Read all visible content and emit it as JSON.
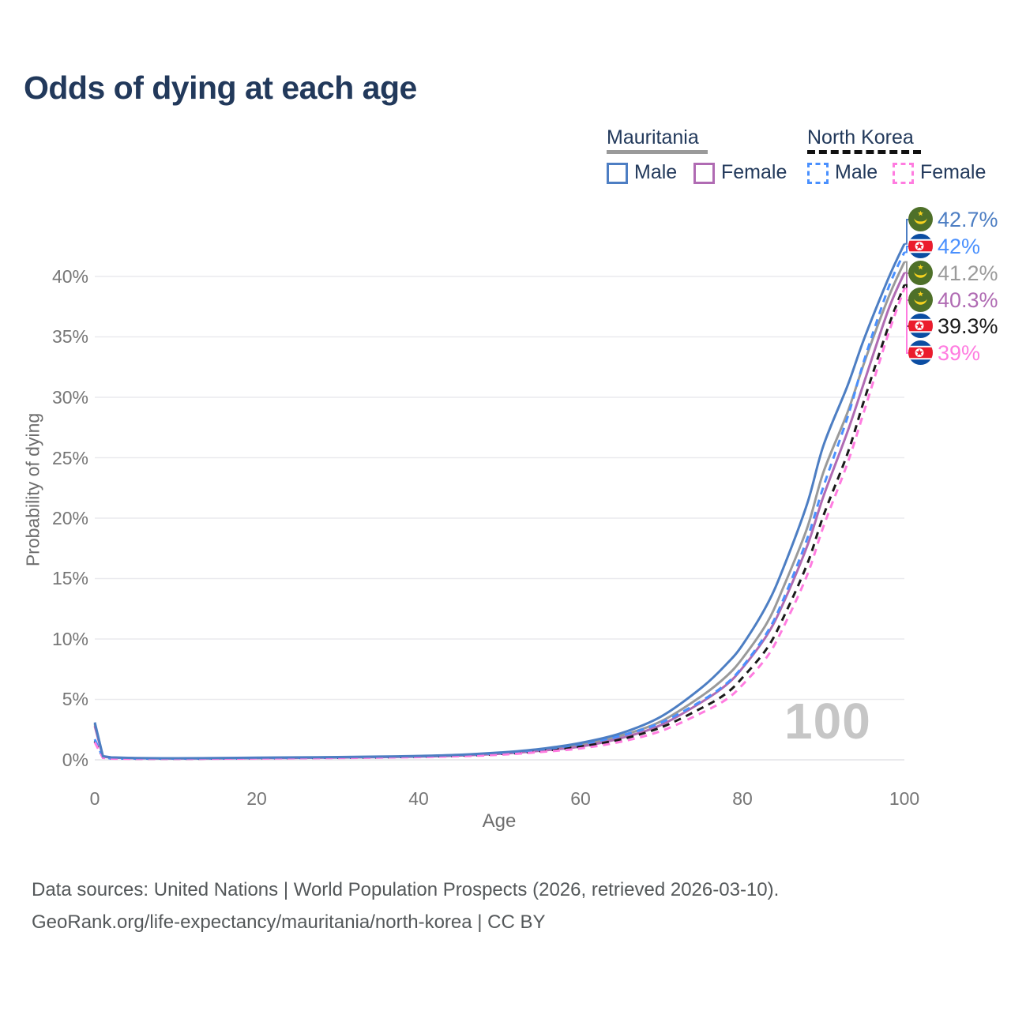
{
  "title": "Odds of dying at each age",
  "legend": {
    "groups": [
      {
        "label": "Mauritania",
        "underline_color": "#9a9a9a",
        "underline_style": "solid",
        "items": [
          {
            "label": "Male",
            "color": "#4d7ec3",
            "dash": "solid"
          },
          {
            "label": "Female",
            "color": "#b06bb3",
            "dash": "solid"
          }
        ]
      },
      {
        "label": "North Korea",
        "underline_color": "#111111",
        "underline_style": "dashed",
        "items": [
          {
            "label": "Male",
            "color": "#4a90fe",
            "dash": "dashed"
          },
          {
            "label": "Female",
            "color": "#ff7ce0",
            "dash": "dashed"
          }
        ]
      }
    ]
  },
  "axes": {
    "y_title": "Probability of dying",
    "x_title": "Age",
    "y_ticks": [
      "40%",
      "35%",
      "30%",
      "25%",
      "20%",
      "15%",
      "10%",
      "5%",
      "0%"
    ],
    "x_ticks": [
      "0",
      "20",
      "40",
      "60",
      "80",
      "100"
    ]
  },
  "watermark": "100",
  "end_labels": [
    {
      "text": "42.7%",
      "series": "mauritania-male",
      "flag": "mauritania"
    },
    {
      "text": "42%",
      "series": "north-korea-male",
      "flag": "north-korea"
    },
    {
      "text": "41.2%",
      "series": "mauritania-both",
      "flag": "mauritania"
    },
    {
      "text": "40.3%",
      "series": "mauritania-female",
      "flag": "mauritania"
    },
    {
      "text": "39.3%",
      "series": "north-korea-both",
      "flag": "north-korea"
    },
    {
      "text": "39%",
      "series": "north-korea-female",
      "flag": "north-korea"
    }
  ],
  "footer": {
    "line1": "Data sources: United Nations | World Population Prospects (2026, retrieved 2026-03-10).",
    "line2": "GeoRank.org/life-expectancy/mauritania/north-korea | CC BY"
  },
  "chart_data": {
    "type": "line",
    "title": "Odds of dying at each age",
    "xlabel": "Age",
    "ylabel": "Probability of dying",
    "xlim": [
      0,
      100
    ],
    "ylim_percent": [
      0,
      44
    ],
    "x_ticks": [
      0,
      20,
      40,
      60,
      80,
      100
    ],
    "y_ticks_percent": [
      0,
      5,
      10,
      15,
      20,
      25,
      30,
      35,
      40
    ],
    "grid": "horizontal",
    "legend_position": "top-right",
    "ages": [
      0,
      1,
      2,
      5,
      10,
      15,
      20,
      25,
      30,
      35,
      40,
      45,
      50,
      55,
      60,
      65,
      70,
      75,
      78,
      80,
      83,
      85,
      88,
      90,
      93,
      95,
      98,
      100
    ],
    "series": [
      {
        "name": "Mauritania Male",
        "id": "mauritania-male",
        "color": "#4d7ec3",
        "dash": "solid",
        "end_label": "42.7%",
        "values_percent": [
          3.1,
          0.3,
          0.2,
          0.15,
          0.13,
          0.15,
          0.18,
          0.2,
          0.23,
          0.27,
          0.32,
          0.42,
          0.6,
          0.9,
          1.4,
          2.2,
          3.6,
          6.0,
          7.9,
          9.5,
          12.8,
          15.8,
          21.2,
          26.0,
          31.0,
          34.8,
          39.8,
          42.7
        ]
      },
      {
        "name": "North Korea Male",
        "id": "north-korea-male",
        "color": "#4a90fe",
        "dash": "dashed",
        "end_label": "42%",
        "values_percent": [
          1.7,
          0.2,
          0.12,
          0.1,
          0.1,
          0.12,
          0.15,
          0.17,
          0.2,
          0.24,
          0.3,
          0.4,
          0.55,
          0.85,
          1.3,
          2.0,
          3.1,
          4.9,
          6.3,
          7.7,
          10.5,
          13.2,
          18.3,
          22.6,
          28.4,
          33.0,
          39.0,
          42.0
        ]
      },
      {
        "name": "Mauritania (both sexes)",
        "id": "mauritania-both",
        "color": "#9a9a9a",
        "dash": "solid",
        "end_label": "41.2%",
        "values_percent": [
          2.95,
          0.28,
          0.19,
          0.14,
          0.12,
          0.14,
          0.16,
          0.18,
          0.21,
          0.25,
          0.3,
          0.38,
          0.55,
          0.82,
          1.25,
          2.0,
          3.2,
          5.3,
          6.9,
          8.4,
          11.3,
          14.2,
          19.2,
          23.8,
          28.8,
          32.8,
          38.2,
          41.2
        ]
      },
      {
        "name": "Mauritania Female",
        "id": "mauritania-female",
        "color": "#b06bb3",
        "dash": "solid",
        "end_label": "40.3%",
        "values_percent": [
          2.8,
          0.26,
          0.18,
          0.13,
          0.11,
          0.12,
          0.14,
          0.16,
          0.19,
          0.22,
          0.27,
          0.35,
          0.5,
          0.75,
          1.1,
          1.8,
          2.9,
          4.8,
          6.2,
          7.6,
          10.3,
          12.9,
          17.7,
          21.8,
          27.2,
          31.2,
          37.2,
          40.3
        ]
      },
      {
        "name": "North Korea (both sexes)",
        "id": "north-korea-both",
        "color": "#1a1a1a",
        "dash": "dashed",
        "end_label": "39.3%",
        "values_percent": [
          1.55,
          0.18,
          0.11,
          0.09,
          0.09,
          0.1,
          0.13,
          0.15,
          0.17,
          0.2,
          0.26,
          0.34,
          0.48,
          0.72,
          1.1,
          1.7,
          2.7,
          4.3,
          5.5,
          6.8,
          9.2,
          11.7,
          16.2,
          20.2,
          25.4,
          29.7,
          35.8,
          39.3
        ]
      },
      {
        "name": "North Korea Female",
        "id": "north-korea-female",
        "color": "#ff7ce0",
        "dash": "dashed",
        "end_label": "39%",
        "values_percent": [
          1.45,
          0.17,
          0.1,
          0.08,
          0.08,
          0.09,
          0.11,
          0.13,
          0.15,
          0.18,
          0.23,
          0.3,
          0.42,
          0.65,
          0.95,
          1.5,
          2.4,
          3.9,
          5.0,
          6.2,
          8.5,
          10.9,
          15.3,
          19.3,
          24.6,
          28.8,
          35.2,
          39.0
        ]
      }
    ]
  }
}
